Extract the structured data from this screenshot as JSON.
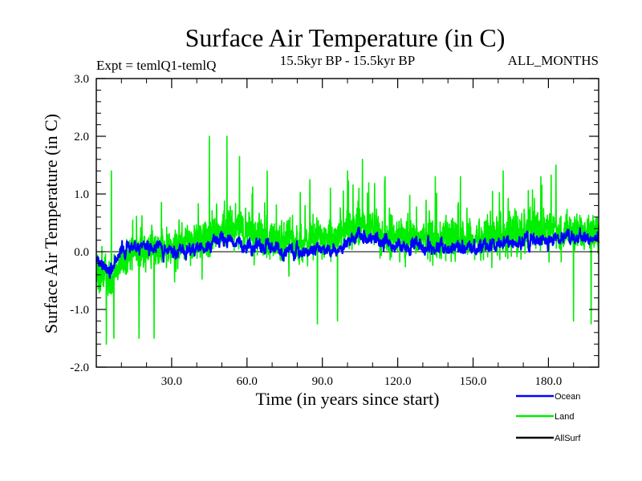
{
  "chart_data": {
    "type": "line",
    "title": "Surface Air Temperature (in C)",
    "subtitle_left": "Expt = temlQ1-temlQ",
    "subtitle_center": "15.5kyr BP - 15.5kyr BP",
    "subtitle_right": "ALL_MONTHS",
    "xlabel": "Time (in years since start)",
    "ylabel": "Surface Air Temperature (in C)",
    "xlim": [
      0,
      200
    ],
    "ylim": [
      -2.0,
      3.0
    ],
    "x_ticks": [
      30,
      60,
      90,
      120,
      150,
      180
    ],
    "x_tick_labels": [
      "30.0",
      "60.0",
      "90.0",
      "120.0",
      "150.0",
      "180.0"
    ],
    "y_ticks": [
      -2.0,
      -1.0,
      0.0,
      1.0,
      2.0,
      3.0
    ],
    "y_tick_labels": [
      "-2.0",
      "-1.0",
      "0.0",
      "1.0",
      "2.0",
      "3.0"
    ],
    "zero_line": 0.0,
    "monthly_samples": 2400,
    "series": [
      {
        "name": "Ocean",
        "color": "#0000ff",
        "mean": 0.1,
        "range": [
          -0.7,
          0.6
        ],
        "keypoints": [
          [
            0,
            -0.2
          ],
          [
            5,
            -0.35
          ],
          [
            10,
            0.05
          ],
          [
            20,
            0.1
          ],
          [
            35,
            0.0
          ],
          [
            50,
            0.2
          ],
          [
            60,
            0.1
          ],
          [
            80,
            0.0
          ],
          [
            95,
            0.05
          ],
          [
            105,
            0.3
          ],
          [
            120,
            0.1
          ],
          [
            150,
            0.05
          ],
          [
            170,
            0.2
          ],
          [
            190,
            0.25
          ],
          [
            200,
            0.2
          ]
        ]
      },
      {
        "name": "Land",
        "color": "#00ee00",
        "mean": 0.15,
        "range": [
          -1.6,
          2.0
        ],
        "keypoints": [
          [
            0,
            -0.3
          ],
          [
            5,
            -0.5
          ],
          [
            15,
            0.05
          ],
          [
            30,
            0.05
          ],
          [
            45,
            0.3
          ],
          [
            55,
            0.4
          ],
          [
            70,
            0.2
          ],
          [
            90,
            0.2
          ],
          [
            105,
            0.45
          ],
          [
            120,
            0.25
          ],
          [
            150,
            0.2
          ],
          [
            170,
            0.4
          ],
          [
            190,
            0.35
          ],
          [
            200,
            0.3
          ]
        ],
        "spikes": [
          [
            6,
            1.4
          ],
          [
            4,
            -1.6
          ],
          [
            7,
            -1.5
          ],
          [
            17,
            -1.5
          ],
          [
            23,
            -1.5
          ],
          [
            45,
            2.0
          ],
          [
            52,
            2.0
          ],
          [
            57,
            1.65
          ],
          [
            62,
            1.0
          ],
          [
            68,
            1.4
          ],
          [
            85,
            1.25
          ],
          [
            88,
            -1.25
          ],
          [
            100,
            1.4
          ],
          [
            96,
            -1.2
          ],
          [
            106,
            1.6
          ],
          [
            115,
            1.3
          ],
          [
            135,
            1.3
          ],
          [
            145,
            1.3
          ],
          [
            162,
            1.4
          ],
          [
            177,
            1.3
          ],
          [
            183,
            1.5
          ],
          [
            190,
            -1.2
          ],
          [
            197,
            -1.25
          ]
        ]
      },
      {
        "name": "AllSurf",
        "color": "#000000"
      }
    ]
  }
}
